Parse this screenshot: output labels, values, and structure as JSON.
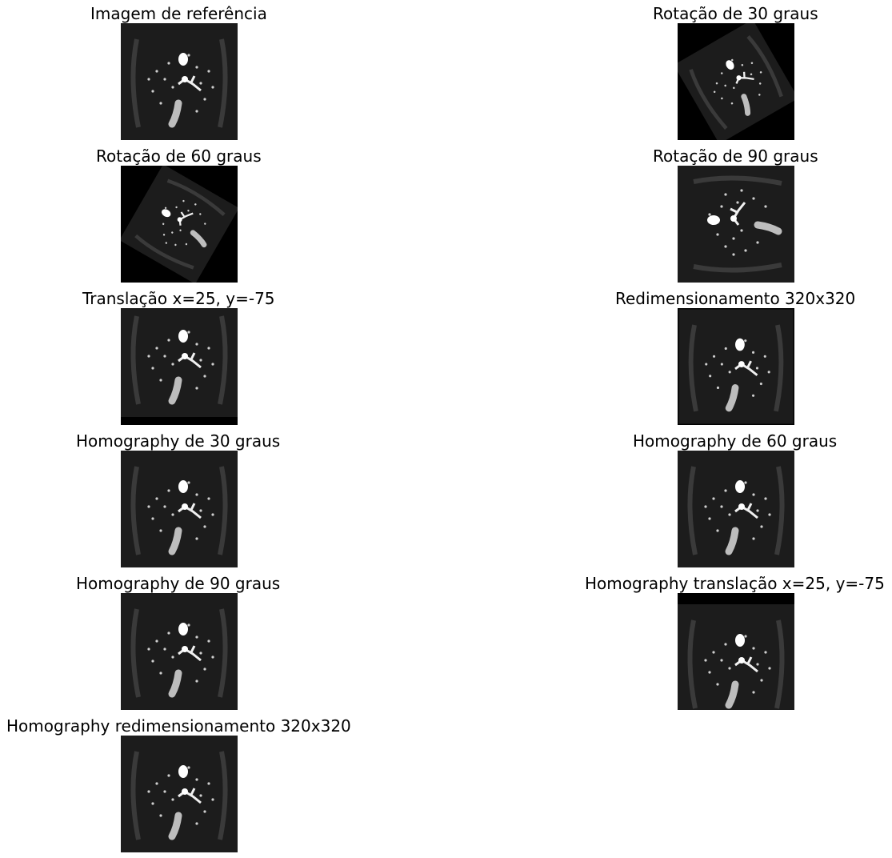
{
  "figure": {
    "panels": [
      {
        "title": "Imagem de referência",
        "transform": "reference"
      },
      {
        "title": "Rotação de 30 graus",
        "transform": "rotate-30"
      },
      {
        "title": "Rotação de 60 graus",
        "transform": "rotate-60"
      },
      {
        "title": "Rotação de 90 graus",
        "transform": "rotate-90"
      },
      {
        "title": "Translação x=25, y=-75",
        "transform": "translate"
      },
      {
        "title": "Redimensionamento 320x320",
        "transform": "scale-320"
      },
      {
        "title": "Homography de 30 graus",
        "transform": "reference"
      },
      {
        "title": "Homography de 60 graus",
        "transform": "reference"
      },
      {
        "title": "Homography de 90 graus",
        "transform": "reference"
      },
      {
        "title": "Homography translação x=25, y=-75",
        "transform": "homography-translate"
      },
      {
        "title": "Homography redimensionamento 320x320",
        "transform": "reference"
      }
    ]
  },
  "colors": {
    "background": "#ffffff",
    "image_background": "#000000",
    "tissue": "#1c1c1c",
    "vessel": "#ffffff"
  }
}
